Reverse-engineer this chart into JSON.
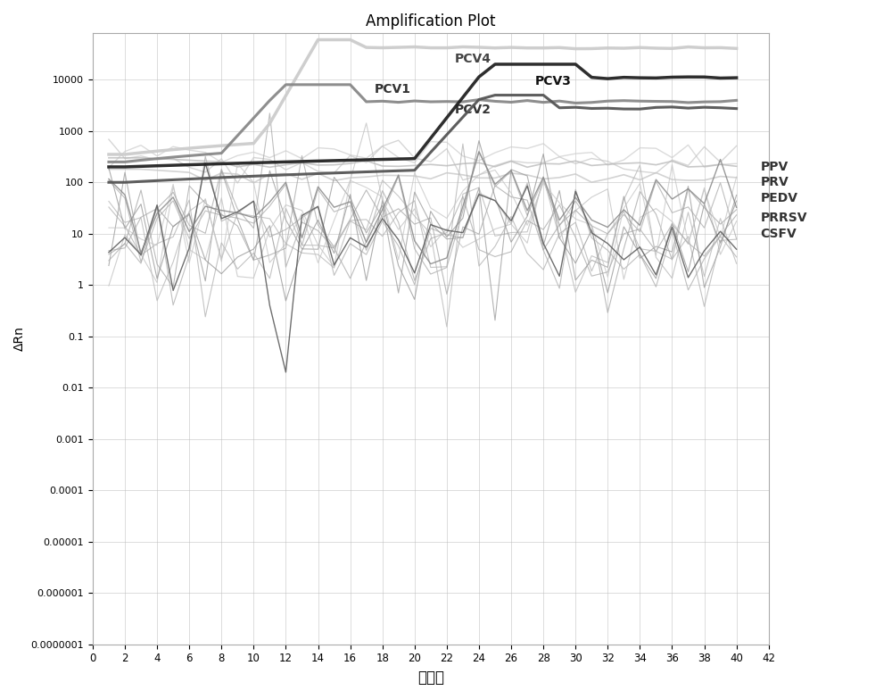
{
  "title": "Amplification Plot",
  "xlabel": "循环数",
  "ylabel": "ΔRn",
  "xlim": [
    0,
    42
  ],
  "ylim_log_min": 1e-07,
  "ylim_log_max": 100000,
  "xticks": [
    0,
    2,
    4,
    6,
    8,
    10,
    12,
    14,
    16,
    18,
    20,
    22,
    24,
    26,
    28,
    30,
    32,
    34,
    36,
    38,
    40,
    42
  ],
  "ytick_vals": [
    1e-07,
    1e-06,
    1e-05,
    0.0001,
    0.001,
    0.01,
    0.1,
    1,
    10,
    100,
    1000,
    10000
  ],
  "ytick_labels": [
    "0.0000001",
    "0.000001",
    "0.00001",
    "0.0001",
    "0.001",
    "0.01",
    "0.1",
    "1",
    "10",
    "100",
    "1000",
    "10000"
  ],
  "legend_labels": [
    "PPV",
    "PRV",
    "PEDV",
    "PRRSV",
    "CSFV"
  ],
  "pcv_labels": [
    "PCV1",
    "PCV2",
    "PCV3",
    "PCV4"
  ],
  "background_color": "#ffffff",
  "plot_bg_color": "#f5f5f5",
  "grid_color": "#cccccc",
  "pcv4_color": "#cccccc",
  "pcv1_color": "#888888",
  "pcv3_color": "#222222",
  "pcv2_color": "#555555",
  "noise_colors": [
    "#aaaaaa",
    "#bbbbbb",
    "#999999",
    "#b8b8b8",
    "#c5c5c5",
    "#a0a0a0",
    "#b0b0b0",
    "#909090",
    "#c0c0c0",
    "#d0d0d0"
  ]
}
